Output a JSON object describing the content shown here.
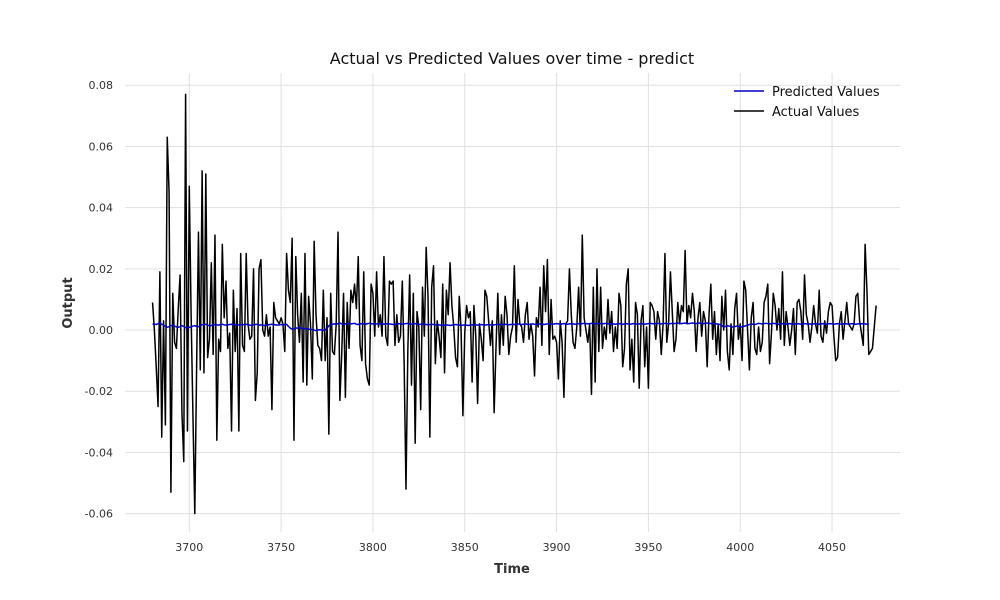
{
  "chart_data": {
    "type": "line",
    "title": "Actual vs Predicted Values over time - predict",
    "xlabel": "Time",
    "ylabel": "Output",
    "xlim": [
      3665,
      4087
    ],
    "ylim": [
      -0.066,
      0.084
    ],
    "xticks": [
      3700,
      3750,
      3800,
      3850,
      3900,
      3950,
      4000,
      4050
    ],
    "yticks": [
      -0.06,
      -0.04,
      -0.02,
      0.0,
      0.02,
      0.04,
      0.06,
      0.08
    ],
    "grid": true,
    "legend_position": "top-right",
    "legend": [
      "Predicted Values",
      "Actual Values"
    ],
    "series": [
      {
        "name": "Predicted Values",
        "color": "#0000cc",
        "x_start": 3680,
        "x_step": 1,
        "values": [
          0.0019,
          0.002,
          0.0018,
          0.0021,
          0.0023,
          0.0019,
          0.0016,
          0.0012,
          0.0009,
          0.0011,
          0.0014,
          0.0016,
          0.0013,
          0.001,
          0.0009,
          0.0011,
          0.0014,
          0.0012,
          0.0008,
          0.0007,
          0.0009,
          0.001,
          0.0013,
          0.0014,
          0.0012,
          0.0011,
          0.0014,
          0.0017,
          0.0018,
          0.0019,
          0.0016,
          0.0014,
          0.0015,
          0.0017,
          0.0018,
          0.0017,
          0.0016,
          0.0018,
          0.0019,
          0.0017,
          0.0016,
          0.0017,
          0.0018,
          0.0019,
          0.0018,
          0.0017,
          0.0016,
          0.0017,
          0.0018,
          0.0017,
          0.0018,
          0.0019,
          0.0017,
          0.0016,
          0.0015,
          0.0017,
          0.0018,
          0.0019,
          0.0016,
          0.0017,
          0.0016,
          0.0015,
          0.0016,
          0.0017,
          0.0018,
          0.0019,
          0.0018,
          0.0017,
          0.0016,
          0.0017,
          0.0018,
          0.0017,
          0.0018,
          0.0019,
          0.0012,
          0.0006,
          0.0003,
          0.0004,
          0.0007,
          0.0006,
          0.0008,
          0.0006,
          0.0004,
          0.0005,
          0.0004,
          0.0002,
          0.0003,
          0.0001,
          0.0,
          -0.0002,
          0.0,
          0.0001,
          0.0,
          -0.0001,
          0.0001,
          0.0006,
          0.0014,
          0.0018,
          0.0019,
          0.002,
          0.0019,
          0.0021,
          0.0023,
          0.002,
          0.0018,
          0.002,
          0.0021,
          0.0022,
          0.002,
          0.0021,
          0.0022,
          0.0019,
          0.0018,
          0.002,
          0.0021,
          0.002,
          0.0019,
          0.0021,
          0.0022,
          0.0021,
          0.002,
          0.0019,
          0.002,
          0.0021,
          0.002,
          0.0021,
          0.0019,
          0.002,
          0.0021,
          0.002,
          0.0019,
          0.0018,
          0.0019,
          0.002,
          0.0021,
          0.002,
          0.0019,
          0.002,
          0.0021,
          0.0022,
          0.002,
          0.0019,
          0.002,
          0.0021,
          0.002,
          0.0018,
          0.0019,
          0.002,
          0.0019,
          0.0018,
          0.0017,
          0.0018,
          0.0019,
          0.0018,
          0.0017,
          0.0016,
          0.0017,
          0.0016,
          0.0015,
          0.0016,
          0.0017,
          0.0016,
          0.0015,
          0.0016,
          0.0017,
          0.0018,
          0.0017,
          0.0016,
          0.0015,
          0.0016,
          0.0017,
          0.0016,
          0.0015,
          0.0016,
          0.0017,
          0.0018,
          0.0017,
          0.0016,
          0.0017,
          0.0018,
          0.0017,
          0.0016,
          0.0017,
          0.0018,
          0.0017,
          0.0016,
          0.0017,
          0.0018,
          0.0019,
          0.0018,
          0.0017,
          0.0018,
          0.0019,
          0.0018,
          0.0017,
          0.0018,
          0.0019,
          0.0018,
          0.0019,
          0.002,
          0.0019,
          0.0018,
          0.0019,
          0.002,
          0.0019,
          0.0018,
          0.0019,
          0.002,
          0.0019,
          0.0018,
          0.0019,
          0.002,
          0.0019,
          0.0018,
          0.0019,
          0.002,
          0.0021,
          0.002,
          0.0019,
          0.002,
          0.0021,
          0.002,
          0.0019,
          0.002,
          0.0021,
          0.002,
          0.0019,
          0.002,
          0.0021,
          0.002,
          0.0019,
          0.002,
          0.0021,
          0.002,
          0.0021,
          0.0022,
          0.0021,
          0.002,
          0.0021,
          0.0022,
          0.0021,
          0.002,
          0.0021,
          0.0022,
          0.0021,
          0.002,
          0.0021,
          0.0022,
          0.0021,
          0.002,
          0.0021,
          0.002,
          0.0019,
          0.002,
          0.0021,
          0.002,
          0.0019,
          0.002,
          0.0021,
          0.002,
          0.0019,
          0.002,
          0.0021,
          0.002,
          0.0019,
          0.002,
          0.0021,
          0.002,
          0.0019,
          0.002,
          0.0021,
          0.0022,
          0.0021,
          0.002,
          0.0021,
          0.0022,
          0.0021,
          0.002,
          0.0021,
          0.0022,
          0.0021,
          0.002,
          0.0021,
          0.0022,
          0.0021,
          0.0022,
          0.0023,
          0.0022,
          0.0021,
          0.0022,
          0.0023,
          0.0022,
          0.0021,
          0.0022,
          0.0023,
          0.0022,
          0.0021,
          0.0022,
          0.0023,
          0.0022,
          0.0021,
          0.0022,
          0.0023,
          0.0022,
          0.0021,
          0.0022,
          0.0021,
          0.002,
          0.0019,
          0.0018,
          0.0014,
          0.001,
          0.0012,
          0.0014,
          0.0013,
          0.0011,
          0.001,
          0.0011,
          0.0013,
          0.0012,
          0.0011,
          0.001,
          0.0012,
          0.0014,
          0.0016,
          0.0018,
          0.002,
          0.0019,
          0.0018,
          0.002,
          0.0022,
          0.0021,
          0.002,
          0.0021,
          0.0022,
          0.0021,
          0.002,
          0.0021,
          0.0022,
          0.0021,
          0.002,
          0.0019,
          0.002,
          0.0021,
          0.002,
          0.0019,
          0.002,
          0.0021,
          0.002,
          0.0019,
          0.002,
          0.0021,
          0.002,
          0.0019,
          0.002,
          0.0021,
          0.002,
          0.0019,
          0.002,
          0.0019,
          0.002,
          0.0021,
          0.002,
          0.0019,
          0.002,
          0.0021,
          0.002,
          0.0019,
          0.002,
          0.0021,
          0.002,
          0.0019,
          0.002,
          0.0021,
          0.002,
          0.0019,
          0.002,
          0.0021,
          0.002,
          0.0019,
          0.002,
          0.0021,
          0.002,
          0.0019,
          0.002,
          0.0021,
          0.002,
          0.0021,
          0.002,
          0.0019,
          0.002
        ]
      },
      {
        "name": "Actual Values",
        "color": "#000000",
        "x_start": 3680,
        "x_step": 1,
        "values": [
          0.009,
          0.0,
          -0.012,
          -0.025,
          0.019,
          -0.035,
          0.003,
          -0.031,
          0.063,
          0.045,
          -0.053,
          0.012,
          -0.004,
          -0.006,
          0.007,
          0.018,
          -0.027,
          -0.043,
          0.077,
          -0.033,
          0.047,
          0.005,
          -0.028,
          -0.06,
          -0.012,
          0.032,
          -0.013,
          0.052,
          -0.014,
          0.051,
          -0.009,
          -0.003,
          0.022,
          -0.008,
          0.031,
          -0.036,
          -0.003,
          -0.007,
          0.028,
          0.004,
          0.016,
          -0.006,
          -0.001,
          -0.033,
          0.013,
          -0.007,
          0.007,
          -0.033,
          0.025,
          -0.005,
          -0.007,
          0.025,
          0.002,
          -0.003,
          -0.002,
          0.02,
          -0.023,
          -0.014,
          0.02,
          0.023,
          0.0,
          -0.002,
          0.005,
          -0.002,
          0.001,
          -0.026,
          0.009,
          0.004,
          0.003,
          0.002,
          0.004,
          0.002,
          -0.007,
          0.025,
          0.013,
          0.009,
          0.03,
          -0.036,
          0.024,
          0.005,
          -0.004,
          0.012,
          -0.017,
          0.025,
          -0.018,
          0.011,
          0.002,
          -0.016,
          0.029,
          0.005,
          -0.005,
          -0.006,
          -0.01,
          0.013,
          -0.01,
          0.004,
          -0.034,
          0.012,
          -0.007,
          -0.008,
          0.002,
          0.032,
          -0.023,
          -0.008,
          0.012,
          -0.022,
          0.009,
          -0.006,
          0.013,
          0.009,
          0.015,
          0.007,
          0.024,
          -0.005,
          -0.01,
          0.019,
          -0.011,
          -0.016,
          -0.018,
          0.015,
          0.012,
          -0.002,
          0.019,
          0.001,
          0.005,
          -0.002,
          0.024,
          -0.002,
          -0.005,
          0.016,
          0.015,
          0.016,
          -0.005,
          0.005,
          -0.004,
          -0.002,
          0.016,
          -0.011,
          -0.052,
          -0.007,
          0.018,
          -0.018,
          0.012,
          -0.037,
          0.006,
          0.001,
          -0.026,
          0.014,
          -0.002,
          0.027,
          0.011,
          -0.035,
          0.014,
          0.021,
          -0.011,
          0.003,
          -0.002,
          -0.009,
          0.015,
          -0.014,
          0.013,
          0.005,
          0.022,
          0.008,
          0.001,
          -0.009,
          -0.012,
          0.011,
          0.0,
          -0.028,
          -0.001,
          0.008,
          0.004,
          0.006,
          -0.017,
          0.008,
          -0.002,
          -0.024,
          0.002,
          -0.003,
          -0.01,
          0.013,
          0.011,
          0.003,
          -0.005,
          0.003,
          -0.027,
          -0.006,
          0.012,
          -0.008,
          0.005,
          -0.005,
          0.011,
          0.005,
          -0.008,
          -0.002,
          0.001,
          0.021,
          -0.004,
          0.01,
          0.002,
          0.001,
          -0.004,
          0.005,
          0.009,
          -0.003,
          0.002,
          -0.002,
          -0.015,
          0.004,
          0.001,
          0.014,
          -0.005,
          0.021,
          0.006,
          0.023,
          -0.008,
          0.01,
          -0.003,
          -0.002,
          -0.004,
          -0.016,
          0.003,
          -0.004,
          -0.022,
          0.002,
          0.003,
          0.02,
          0.005,
          -0.004,
          -0.006,
          0.001,
          0.014,
          -0.002,
          0.031,
          0.004,
          0.0,
          -0.004,
          0.002,
          -0.021,
          0.014,
          -0.017,
          0.02,
          -0.007,
          0.014,
          -0.006,
          0.001,
          -0.003,
          0.01,
          -0.001,
          0.006,
          -0.007,
          0.001,
          -0.006,
          0.012,
          0.008,
          -0.012,
          -0.006,
          0.015,
          0.02,
          -0.013,
          -0.003,
          -0.017,
          0.009,
          0.005,
          -0.019,
          0.003,
          0.008,
          -0.012,
          0.001,
          -0.019,
          0.009,
          0.008,
          0.006,
          -0.003,
          0.006,
          0.003,
          -0.008,
          0.002,
          0.025,
          -0.004,
          0.002,
          0.019,
          0.006,
          -0.007,
          -0.003,
          0.009,
          0.002,
          0.008,
          0.006,
          0.026,
          0.002,
          0.008,
          0.004,
          0.012,
          0.006,
          -0.007,
          0.004,
          0.009,
          -0.002,
          0.006,
          0.003,
          -0.012,
          0.005,
          0.015,
          -0.003,
          0.006,
          -0.008,
          0.002,
          -0.01,
          0.011,
          0.0,
          0.013,
          -0.007,
          -0.013,
          0.002,
          -0.008,
          0.007,
          0.012,
          -0.003,
          0.002,
          -0.01,
          0.016,
          0.013,
          0.0,
          -0.013,
          0.004,
          0.009,
          -0.006,
          -0.008,
          0.001,
          -0.007,
          -0.004,
          0.009,
          0.011,
          0.015,
          -0.011,
          -0.001,
          0.012,
          0.008,
          0.0,
          0.007,
          -0.003,
          0.019,
          -0.005,
          0.006,
          0.001,
          -0.005,
          0.0,
          0.007,
          -0.008,
          0.009,
          0.01,
          0.006,
          -0.003,
          0.018,
          0.005,
          0.002,
          -0.004,
          0.001,
          0.008,
          0.002,
          -0.001,
          0.013,
          -0.002,
          -0.004,
          0.003,
          -0.001,
          0.006,
          0.009,
          0.008,
          -0.002,
          -0.01,
          -0.009,
          0.002,
          0.006,
          -0.003,
          0.003,
          0.009,
          0.002,
          0.001,
          0.0,
          0.002,
          0.011,
          0.012,
          0.003,
          -0.001,
          -0.005,
          0.028,
          0.013,
          -0.008,
          -0.007,
          -0.006,
          0.001,
          0.008
        ]
      }
    ]
  }
}
